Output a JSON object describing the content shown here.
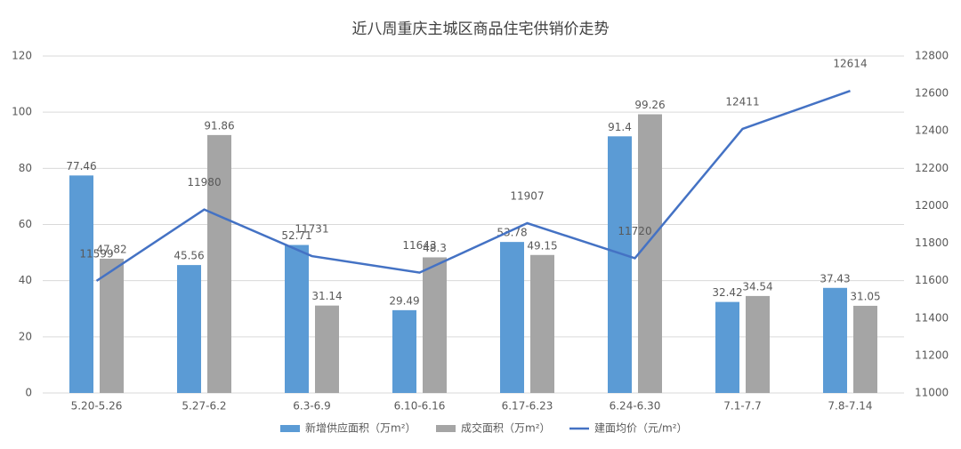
{
  "chart_data": {
    "type": "bar",
    "title": "近八周重庆主城区商品住宅供销价走势",
    "categories": [
      "5.20-5.26",
      "5.27-6.2",
      "6.3-6.9",
      "6.10-6.16",
      "6.17-6.23",
      "6.24-6.30",
      "7.1-7.7",
      "7.8-7.14"
    ],
    "series": [
      {
        "name": "新增供应面积（万m²）",
        "type": "bar",
        "color": "#5b9bd5",
        "values": [
          77.46,
          45.56,
          52.71,
          29.49,
          53.78,
          91.4,
          32.42,
          37.43
        ]
      },
      {
        "name": "成交面积（万m²）",
        "type": "bar",
        "color": "#a5a5a5",
        "values": [
          47.82,
          91.86,
          31.14,
          48.3,
          49.15,
          99.26,
          34.54,
          31.05
        ]
      },
      {
        "name": "建面均价（元/m²）",
        "type": "line",
        "axis": "y2",
        "color": "#4472c4",
        "values": [
          11599,
          11980,
          11731,
          11643,
          11907,
          11720,
          12411,
          12614
        ]
      }
    ],
    "ylim": [
      0,
      120
    ],
    "yticks": [
      0,
      20,
      40,
      60,
      80,
      100,
      120
    ],
    "y2lim": [
      11000,
      12800
    ],
    "y2ticks": [
      11000,
      11200,
      11400,
      11600,
      11800,
      12000,
      12200,
      12400,
      12600,
      12800
    ],
    "grid": true,
    "legend": "bottom"
  }
}
